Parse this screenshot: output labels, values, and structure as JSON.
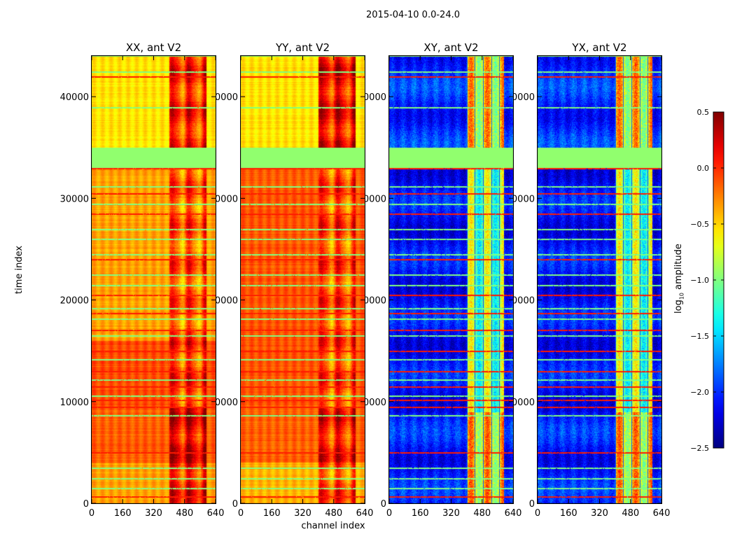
{
  "figure_title": "2015-04-10 0.0-24.0",
  "chart_data": {
    "type": "heatmap",
    "title": "2015-04-10 0.0-24.0",
    "xlabel": "channel index",
    "ylabel": "time index",
    "xlim": [
      0,
      640
    ],
    "ylim": [
      0,
      44000
    ],
    "xticks": [
      0,
      160,
      320,
      480,
      640
    ],
    "yticks": [
      0,
      10000,
      20000,
      30000,
      40000
    ],
    "colormap": "jet",
    "colorbar": {
      "label_main": "log",
      "label_sub": "10",
      "label_rest": " amplitude",
      "range": [
        -2.5,
        0.5
      ],
      "ticks": [
        "0.5",
        "0.0",
        "−0.5",
        "−1.0",
        "−1.5",
        "−2.0",
        "−2.5"
      ],
      "tick_values": [
        0.5,
        0.0,
        -0.5,
        -1.0,
        -1.5,
        -2.0,
        -2.5
      ]
    },
    "flagged_time_range": [
      33000,
      35000
    ],
    "flag_value": -0.95,
    "panels": [
      {
        "title": "XX, ant V2",
        "kind": "auto",
        "segments": [
          [
            0,
            4000,
            -0.35,
            0.05
          ],
          [
            4000,
            9500,
            -0.15,
            0.15
          ],
          [
            9500,
            16000,
            -0.1,
            -0.05
          ],
          [
            16000,
            33000,
            -0.35,
            -0.15
          ],
          [
            35000,
            44000,
            -0.55,
            0.0
          ]
        ]
      },
      {
        "title": "YY, ant V2",
        "kind": "auto",
        "segments": [
          [
            0,
            4000,
            -0.4,
            -0.1
          ],
          [
            4000,
            9500,
            -0.15,
            0.05
          ],
          [
            9500,
            33000,
            -0.12,
            -0.1
          ],
          [
            35000,
            44000,
            -0.55,
            0.1
          ]
        ]
      },
      {
        "title": "XY, ant V2",
        "kind": "cross",
        "segments": [
          [
            0,
            9000,
            -2.05,
            -0.55
          ],
          [
            9000,
            33000,
            -2.1,
            -1.0
          ],
          [
            35000,
            44000,
            -2.0,
            -0.6
          ]
        ]
      },
      {
        "title": "YX, ant V2",
        "kind": "cross",
        "segments": [
          [
            0,
            9000,
            -2.05,
            -0.55
          ],
          [
            9000,
            33000,
            -2.1,
            -1.0
          ],
          [
            35000,
            44000,
            -2.0,
            -0.6
          ]
        ]
      }
    ],
    "stripe_rows": [
      [
        700,
        0.05
      ],
      [
        1500,
        -1.0
      ],
      [
        2500,
        -1.0
      ],
      [
        3500,
        -1.0
      ],
      [
        5000,
        0.05
      ],
      [
        8700,
        -1.0
      ],
      [
        9500,
        0.05
      ],
      [
        10200,
        0.05
      ],
      [
        10600,
        -1.0
      ],
      [
        11500,
        0.05
      ],
      [
        12200,
        -1.0
      ],
      [
        13000,
        0.05
      ],
      [
        14200,
        -1.0
      ],
      [
        15000,
        0.05
      ],
      [
        16500,
        -1.0
      ],
      [
        17100,
        0.05
      ],
      [
        18200,
        -1.0
      ],
      [
        18700,
        0.05
      ],
      [
        19200,
        -1.0
      ],
      [
        20500,
        0.05
      ],
      [
        21500,
        -1.0
      ],
      [
        22500,
        -1.0
      ],
      [
        24000,
        0.05
      ],
      [
        24500,
        -1.0
      ],
      [
        26000,
        -1.0
      ],
      [
        27000,
        -1.0
      ],
      [
        28500,
        0.05
      ],
      [
        29500,
        -1.0
      ],
      [
        30500,
        0.05
      ],
      [
        31200,
        -1.0
      ],
      [
        33000,
        0.05
      ],
      [
        39000,
        -1.0
      ],
      [
        42000,
        0.05
      ],
      [
        42500,
        -1.0
      ]
    ]
  }
}
